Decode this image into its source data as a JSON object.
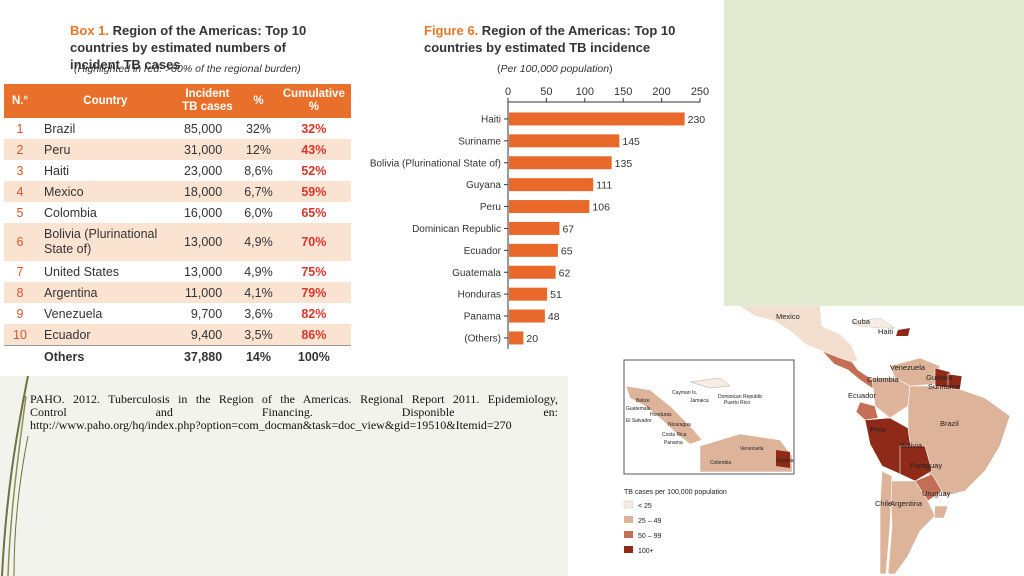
{
  "box1": {
    "label": "Box 1.",
    "title_rest": " Region of the Americas: Top 10 countries by estimated numbers of incident TB cases",
    "subtitle": "(Highlighted in red: >80% of the regional burden)",
    "headers": {
      "no": "N.°",
      "country": "Country",
      "cases_line1": "Incident",
      "cases_line2": "TB cases",
      "pct": "%",
      "cum_line1": "Cumulative",
      "cum_line2": "%"
    },
    "rows": [
      {
        "no": "1",
        "country": "Brazil",
        "cases": "85,000",
        "pct": "32%",
        "cum": "32%"
      },
      {
        "no": "2",
        "country": "Peru",
        "cases": "31,000",
        "pct": "12%",
        "cum": "43%"
      },
      {
        "no": "3",
        "country": "Haiti",
        "cases": "23,000",
        "pct": "8,6%",
        "cum": "52%"
      },
      {
        "no": "4",
        "country": "Mexico",
        "cases": "18,000",
        "pct": "6,7%",
        "cum": "59%"
      },
      {
        "no": "5",
        "country": "Colombia",
        "cases": "16,000",
        "pct": "6,0%",
        "cum": "65%"
      },
      {
        "no": "6",
        "country": "Bolivia (Plurinational",
        "country_line2": "State of)",
        "cases": "13,000",
        "pct": "4,9%",
        "cum": "70%"
      },
      {
        "no": "7",
        "country": "United States",
        "cases": "13,000",
        "pct": "4,9%",
        "cum": "75%"
      },
      {
        "no": "8",
        "country": "Argentina",
        "cases": "11,000",
        "pct": "4,1%",
        "cum": "79%"
      },
      {
        "no": "9",
        "country": "Venezuela",
        "cases": "9,700",
        "pct": "3,6%",
        "cum": "82%"
      },
      {
        "no": "10",
        "country": "Ecuador",
        "cases": "9,400",
        "pct": "3,5%",
        "cum": "86%"
      }
    ],
    "others": {
      "label": "Others",
      "cases": "37,880",
      "pct": "14%",
      "cum": "100%"
    }
  },
  "figure6": {
    "label": "Figure 6.",
    "title_rest": " Region of the Americas: Top 10 countries by estimated TB incidence",
    "subtitle": "(Per 100,000 population)"
  },
  "chart_data": {
    "type": "bar",
    "orientation": "horizontal",
    "categories": [
      "Haiti",
      "Suriname",
      "Bolivia (Plurinational State of)",
      "Guyana",
      "Peru",
      "Dominican Republic",
      "Ecuador",
      "Guatemala",
      "Honduras",
      "Panama",
      "(Others)"
    ],
    "values": [
      230,
      145,
      135,
      111,
      106,
      67,
      65,
      62,
      51,
      48,
      20
    ],
    "xlim": [
      0,
      250
    ],
    "xticks": [
      0,
      50,
      100,
      150,
      200,
      250
    ],
    "axis_position": "top",
    "bar_color": "#e8692a"
  },
  "citation": {
    "line1": "PAHO. 2012. Tuberculosis in the Region of the Americas. Regional Report 2011. Epidemiology,",
    "line2": "Control and Financing. Disponible en:",
    "line3": "http://www.paho.org/hq/index.php?option=com_docman&task=doc_view&gid=19510&Itemid=270"
  },
  "map": {
    "country_labels": [
      "Mexico",
      "Cuba",
      "Haiti",
      "Venezuela",
      "Guyana",
      "Suriname",
      "Colombia",
      "Ecuador",
      "Brazil",
      "Peru",
      "Bolivia",
      "Paraguay",
      "Uruguay",
      "Chile",
      "Argentina"
    ],
    "inset_labels": [
      "Cayman Is.",
      "Jamaica",
      "Dominican Republic",
      "Puerto Rico",
      "Belize",
      "Honduras",
      "Guatemala",
      "Nicaragua",
      "El Salvador",
      "Costa Rica",
      "Panama",
      "Venezuela",
      "Colombia",
      "Guyana"
    ],
    "legend_title": "TB cases per 100,000 population",
    "legend": [
      {
        "label": "< 25",
        "color": "#f6ece3"
      },
      {
        "label": "25 – 49",
        "color": "#ddb39a"
      },
      {
        "label": "50 – 99",
        "color": "#c36f55"
      },
      {
        "label": "100+",
        "color": "#8e2a17"
      }
    ]
  }
}
